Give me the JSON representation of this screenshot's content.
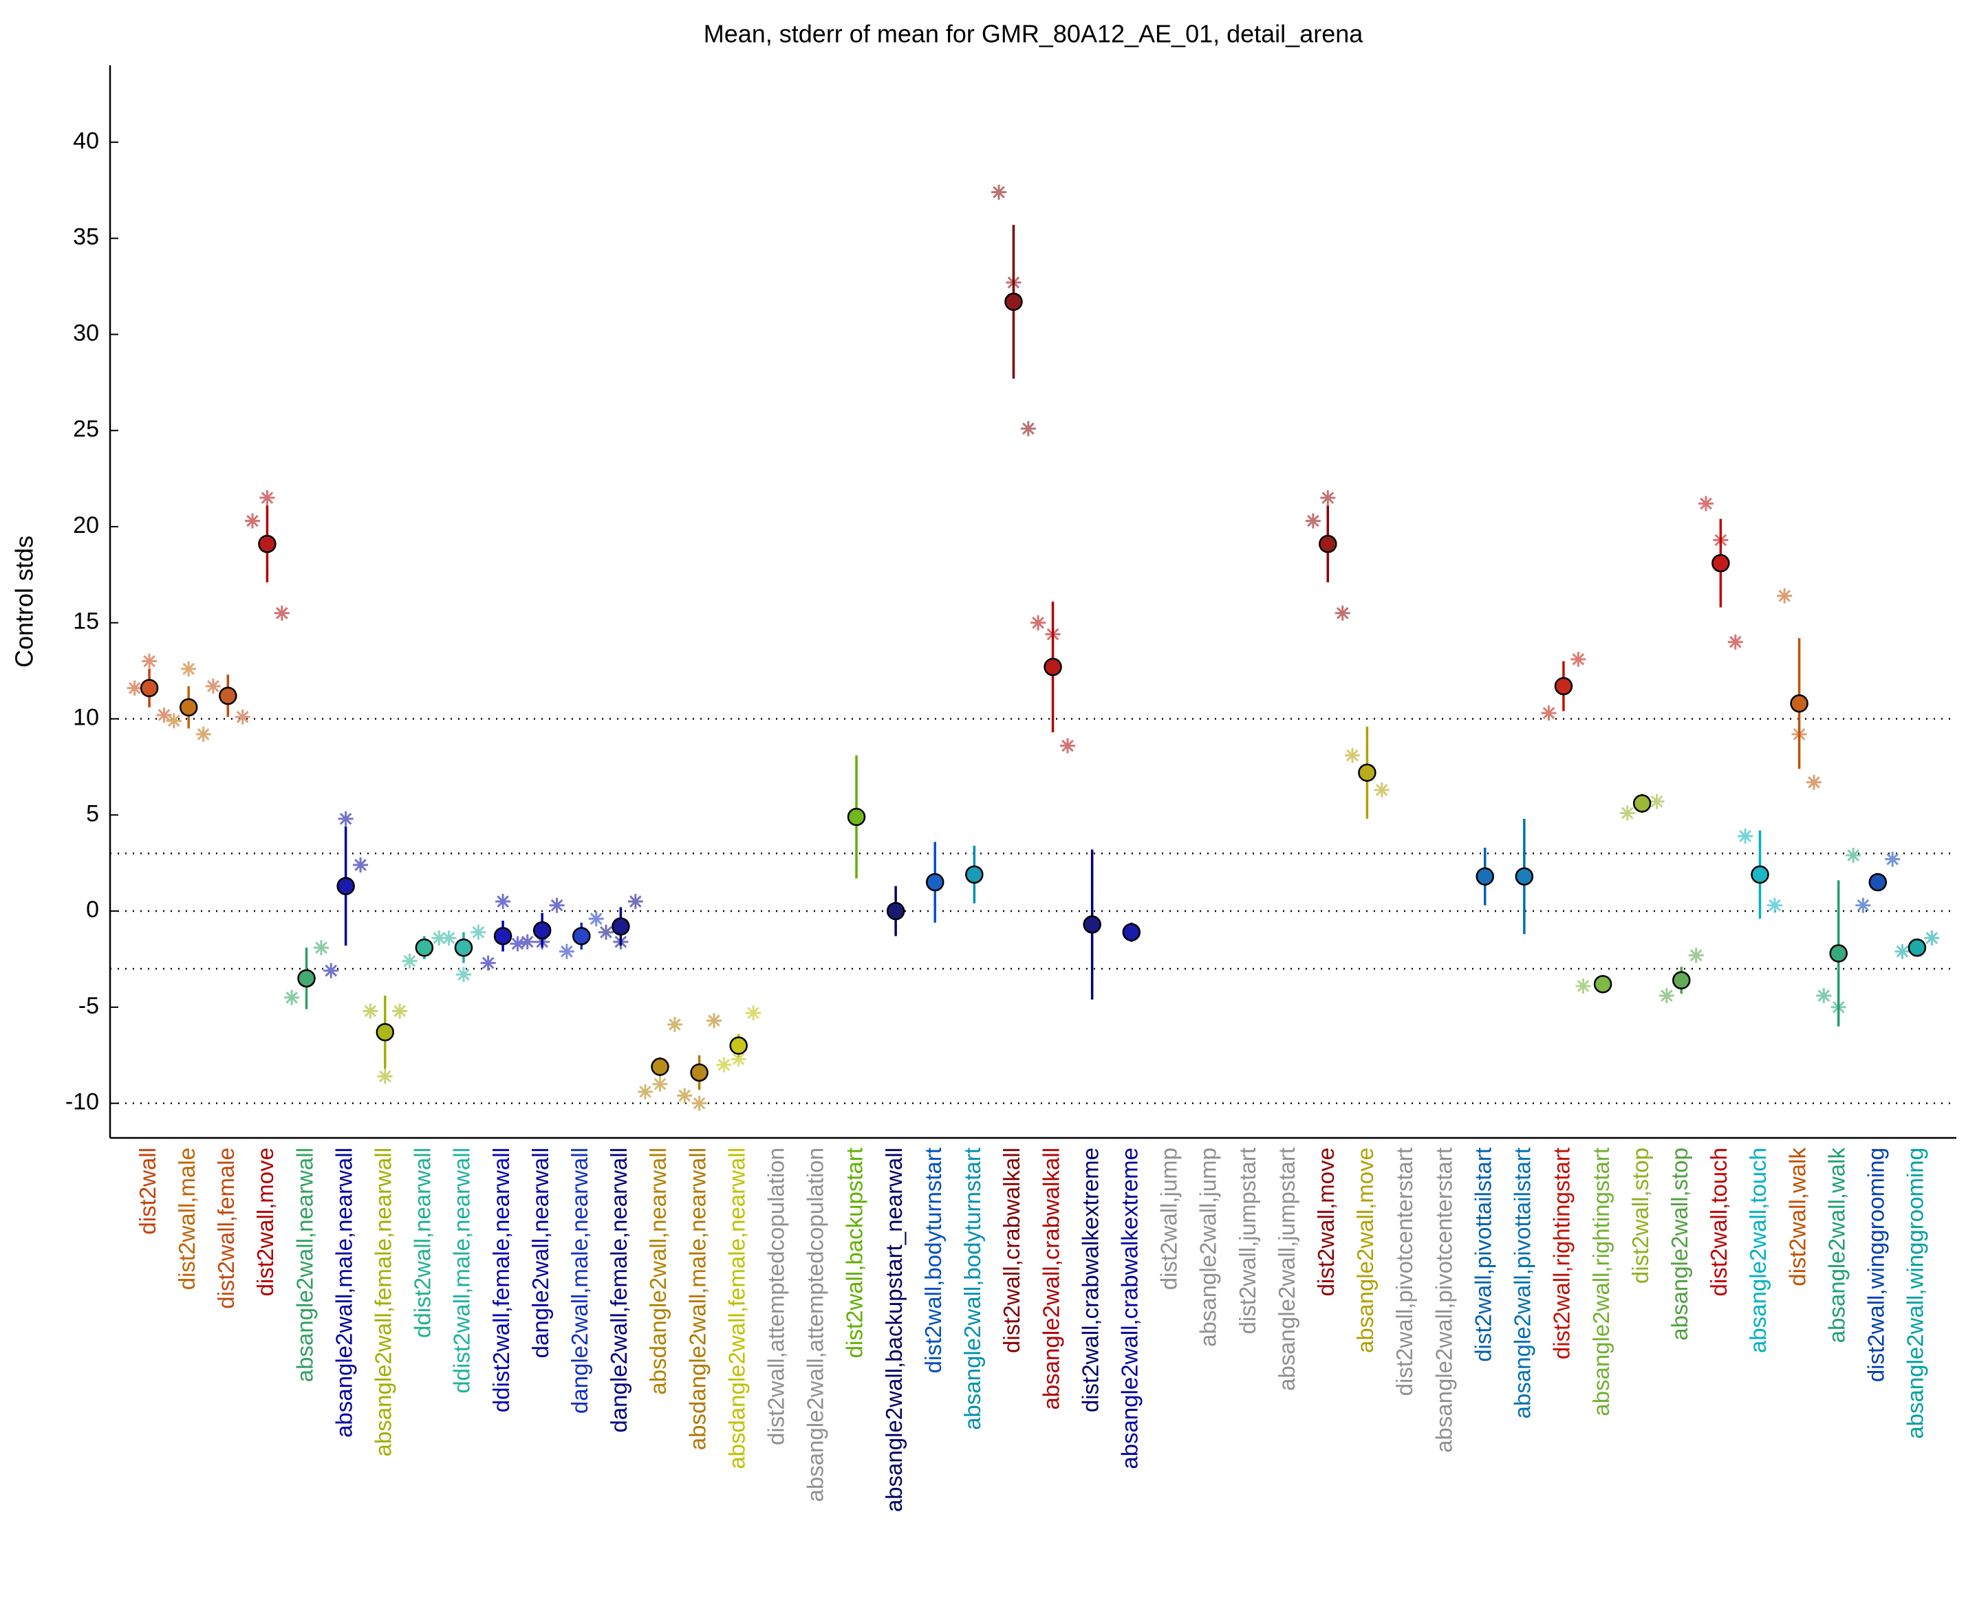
{
  "chart_data": {
    "type": "errorbar",
    "title": "Mean, stderr of mean for GMR_80A12_AE_01, detail_arena",
    "y_label": "Control stds",
    "ylim": [
      -11.8,
      44
    ],
    "yticks": [
      -10,
      -5,
      0,
      5,
      10,
      15,
      20,
      25,
      30,
      35,
      40
    ],
    "reference_lines": [
      -10,
      -3,
      0,
      3,
      10
    ],
    "categories": [
      "dist2wall",
      "dist2wall,male",
      "dist2wall,female",
      "dist2wall,move",
      "absangle2wall,nearwall",
      "absangle2wall,male,nearwall",
      "absangle2wall,female,nearwall",
      "ddist2wall,nearwall",
      "ddist2wall,male,nearwall",
      "ddist2wall,female,nearwall",
      "dangle2wall,nearwall",
      "dangle2wall,male,nearwall",
      "dangle2wall,female,nearwall",
      "absdangle2wall,nearwall",
      "absdangle2wall,male,nearwall",
      "absdangle2wall,female,nearwall",
      "dist2wall,attemptedcopulation",
      "absangle2wall,attemptedcopulation",
      "dist2wall,backupstart",
      "absangle2wall,backupstart_nearwall",
      "dist2wall,bodyturnstart",
      "absangle2wall,bodyturnstart",
      "dist2wall,crabwalkall",
      "absangle2wall,crabwalkall",
      "dist2wall,crabwalkextreme",
      "absangle2wall,crabwalkextreme",
      "dist2wall,jump",
      "absangle2wall,jump",
      "dist2wall,jumpstart",
      "absangle2wall,jumpstart",
      "dist2wall,move",
      "absangle2wall,move",
      "dist2wall,pivotcenterstart",
      "absangle2wall,pivotcenterstart",
      "dist2wall,pivottailstart",
      "absangle2wall,pivottailstart",
      "dist2wall,rightingstart",
      "absangle2wall,rightingstart",
      "dist2wall,stop",
      "absangle2wall,stop",
      "dist2wall,touch",
      "absangle2wall,touch",
      "dist2wall,walk",
      "absangle2wall,walk",
      "dist2wall,winggrooming",
      "absangle2wall,winggrooming"
    ],
    "colors": [
      "#c8400c",
      "#c06400",
      "#c04a10",
      "#b00000",
      "#30a060",
      "#0000a0",
      "#a0b000",
      "#20b090",
      "#20b0a0",
      "#0000b0",
      "#0000a0",
      "#1030c0",
      "#000080",
      "#b08000",
      "#b07800",
      "#c0c000",
      "#909090",
      "#909090",
      "#60b000",
      "#000060",
      "#0050c0",
      "#0090b0",
      "#800000",
      "#b00000",
      "#000070",
      "#0000a0",
      "#909090",
      "#909090",
      "#909090",
      "#909090",
      "#900000",
      "#b0a000",
      "#909090",
      "#909090",
      "#0060b0",
      "#0070b0",
      "#c01000",
      "#70b030",
      "#90b020",
      "#50a040",
      "#c00000",
      "#00b0c0",
      "#c05000",
      "#20a070",
      "#0040b0",
      "#00a0a0"
    ],
    "values": [
      11.6,
      10.6,
      11.2,
      19.1,
      -3.5,
      1.3,
      -6.3,
      -1.9,
      -1.9,
      -1.3,
      -1.0,
      -1.3,
      -0.8,
      -8.1,
      -8.4,
      -7.0,
      null,
      null,
      4.9,
      0,
      1.5,
      1.9,
      31.7,
      12.7,
      -0.7,
      -1.1,
      null,
      null,
      null,
      null,
      19.1,
      7.2,
      null,
      null,
      1.8,
      1.8,
      11.7,
      -3.8,
      5.6,
      -3.6,
      18.1,
      1.9,
      10.8,
      -2.2,
      1.5,
      -1.9
    ],
    "errors": [
      1.0,
      1.1,
      1.1,
      2.0,
      1.6,
      3.1,
      1.9,
      0.6,
      0.8,
      0.8,
      0.9,
      0.7,
      1.0,
      0.5,
      0.9,
      0.6,
      null,
      null,
      3.2,
      1.3,
      2.1,
      1.5,
      4.0,
      3.4,
      3.9,
      0.5,
      null,
      null,
      null,
      null,
      2.0,
      2.4,
      null,
      null,
      1.5,
      3.0,
      1.3,
      0.4,
      0.5,
      0.7,
      2.3,
      2.3,
      3.4,
      3.8,
      0.4,
      0.4
    ],
    "subgroup_values": [
      [
        11.6,
        13.0,
        10.2
      ],
      [
        9.9,
        12.6,
        9.2
      ],
      [
        11.7,
        10.1
      ],
      [
        20.3,
        21.5,
        15.5
      ],
      [
        -4.5,
        -1.9
      ],
      [
        -3.1,
        4.8,
        2.4
      ],
      [
        -5.2,
        -8.6,
        -5.2
      ],
      [
        -2.6,
        -1.4
      ],
      [
        -1.4,
        -3.3,
        -1.1
      ],
      [
        -2.7,
        0.5,
        -1.7
      ],
      [
        -1.6,
        -1.6,
        0.3
      ],
      [
        -2.1,
        -0.4
      ],
      [
        -1.1,
        -1.6,
        0.5
      ],
      [
        -9.4,
        -9.0,
        -5.9
      ],
      [
        -9.6,
        -10.0,
        -5.7
      ],
      [
        -8.0,
        -7.7,
        -5.3
      ],
      [],
      [],
      [],
      [],
      [],
      [],
      [
        37.4,
        32.7,
        25.1
      ],
      [
        15.0,
        14.4,
        8.6
      ],
      [],
      [],
      [],
      [],
      [],
      [],
      [
        20.3,
        21.5,
        15.5
      ],
      [
        8.1,
        6.3
      ],
      [],
      [],
      [],
      [],
      [
        10.3,
        13.1
      ],
      [
        -3.9
      ],
      [
        5.1,
        5.7
      ],
      [
        -4.4,
        -2.3
      ],
      [
        21.2,
        19.3,
        14.0
      ],
      [
        3.9,
        0.3
      ],
      [
        16.4,
        9.2,
        6.7
      ],
      [
        -4.4,
        -5.0,
        2.9
      ],
      [
        0.3,
        2.7
      ],
      [
        -2.1,
        -1.4
      ]
    ]
  }
}
